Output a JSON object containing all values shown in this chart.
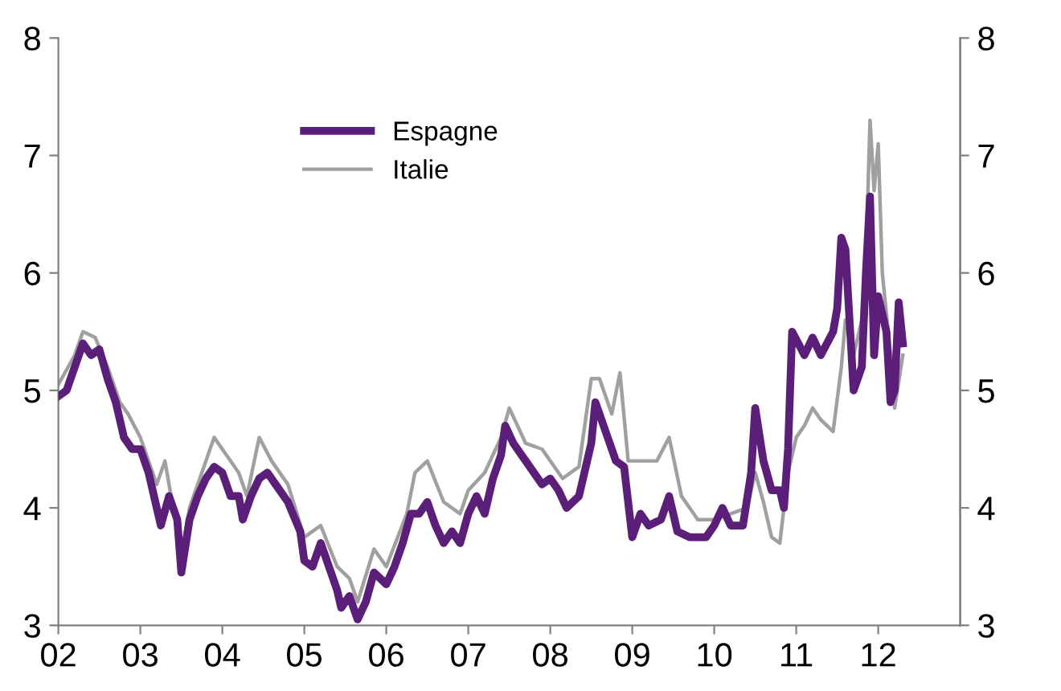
{
  "chart_data": {
    "type": "line",
    "xlim": [
      2002,
      2013
    ],
    "xticks": [
      {
        "value": 2002,
        "label": "02"
      },
      {
        "value": 2003,
        "label": "03"
      },
      {
        "value": 2004,
        "label": "04"
      },
      {
        "value": 2005,
        "label": "05"
      },
      {
        "value": 2006,
        "label": "06"
      },
      {
        "value": 2007,
        "label": "07"
      },
      {
        "value": 2008,
        "label": "08"
      },
      {
        "value": 2009,
        "label": "09"
      },
      {
        "value": 2010,
        "label": "10"
      },
      {
        "value": 2011,
        "label": "11"
      },
      {
        "value": 2012,
        "label": "12"
      }
    ],
    "ylim": [
      3,
      8
    ],
    "yticks": [
      3,
      4,
      5,
      6,
      7,
      8
    ],
    "y2lim": [
      3,
      8
    ],
    "y2ticks": [
      3,
      4,
      5,
      6,
      7,
      8
    ],
    "grid": false,
    "legend": "top",
    "marker": "none",
    "line_style": "solid",
    "series": [
      {
        "name": "Espagne",
        "color": "#5b1f7a",
        "x": [
          2002.0,
          2002.1,
          2002.2,
          2002.3,
          2002.4,
          2002.5,
          2002.6,
          2002.7,
          2002.8,
          2002.9,
          2003.0,
          2003.1,
          2003.2,
          2003.25,
          2003.35,
          2003.45,
          2003.5,
          2003.6,
          2003.7,
          2003.8,
          2003.9,
          2004.0,
          2004.1,
          2004.2,
          2004.25,
          2004.35,
          2004.45,
          2004.55,
          2004.65,
          2004.8,
          2004.95,
          2005.0,
          2005.1,
          2005.2,
          2005.3,
          2005.4,
          2005.45,
          2005.55,
          2005.65,
          2005.75,
          2005.85,
          2006.0,
          2006.1,
          2006.2,
          2006.3,
          2006.4,
          2006.5,
          2006.6,
          2006.7,
          2006.8,
          2006.9,
          2007.0,
          2007.1,
          2007.2,
          2007.3,
          2007.4,
          2007.45,
          2007.55,
          2007.7,
          2007.9,
          2008.0,
          2008.1,
          2008.2,
          2008.35,
          2008.5,
          2008.55,
          2008.65,
          2008.8,
          2008.9,
          2009.0,
          2009.1,
          2009.2,
          2009.35,
          2009.45,
          2009.55,
          2009.7,
          2009.9,
          2010.0,
          2010.1,
          2010.2,
          2010.35,
          2010.45,
          2010.5,
          2010.6,
          2010.7,
          2010.8,
          2010.85,
          2010.9,
          2010.95,
          2011.1,
          2011.2,
          2011.3,
          2011.45,
          2011.5,
          2011.55,
          2011.6,
          2011.7,
          2011.8,
          2011.85,
          2011.9,
          2011.95,
          2012.0,
          2012.1,
          2012.15,
          2012.2,
          2012.25,
          2012.3
        ],
        "values": [
          4.95,
          5.0,
          5.2,
          5.4,
          5.3,
          5.35,
          5.1,
          4.9,
          4.6,
          4.5,
          4.5,
          4.3,
          4.0,
          3.85,
          4.1,
          3.9,
          3.45,
          3.9,
          4.1,
          4.25,
          4.35,
          4.3,
          4.1,
          4.1,
          3.9,
          4.1,
          4.25,
          4.3,
          4.2,
          4.05,
          3.8,
          3.55,
          3.5,
          3.7,
          3.5,
          3.3,
          3.15,
          3.25,
          3.05,
          3.2,
          3.45,
          3.35,
          3.5,
          3.7,
          3.95,
          3.95,
          4.05,
          3.85,
          3.7,
          3.8,
          3.7,
          3.95,
          4.1,
          3.95,
          4.25,
          4.45,
          4.7,
          4.55,
          4.4,
          4.2,
          4.25,
          4.15,
          4.0,
          4.1,
          4.55,
          4.9,
          4.7,
          4.4,
          4.35,
          3.75,
          3.95,
          3.85,
          3.9,
          4.1,
          3.8,
          3.75,
          3.75,
          3.85,
          4.0,
          3.85,
          3.85,
          4.3,
          4.85,
          4.4,
          4.15,
          4.15,
          4.0,
          4.5,
          5.5,
          5.3,
          5.45,
          5.3,
          5.5,
          5.7,
          6.3,
          6.2,
          5.0,
          5.2,
          6.0,
          6.65,
          5.3,
          5.8,
          5.5,
          4.9,
          5.0,
          5.75,
          5.4
        ]
      },
      {
        "name": "Italie",
        "color": "#a0a0a0",
        "x": [
          2002.0,
          2002.2,
          2002.3,
          2002.45,
          2002.6,
          2002.75,
          2002.85,
          2003.0,
          2003.2,
          2003.3,
          2003.5,
          2003.6,
          2003.8,
          2003.9,
          2004.0,
          2004.2,
          2004.3,
          2004.45,
          2004.6,
          2004.8,
          2005.0,
          2005.2,
          2005.4,
          2005.55,
          2005.65,
          2005.85,
          2006.0,
          2006.25,
          2006.35,
          2006.5,
          2006.7,
          2006.9,
          2007.0,
          2007.2,
          2007.4,
          2007.5,
          2007.7,
          2007.9,
          2008.15,
          2008.35,
          2008.5,
          2008.6,
          2008.75,
          2008.85,
          2008.95,
          2009.1,
          2009.3,
          2009.45,
          2009.6,
          2009.8,
          2010.0,
          2010.2,
          2010.4,
          2010.5,
          2010.6,
          2010.7,
          2010.8,
          2010.9,
          2011.0,
          2011.1,
          2011.2,
          2011.3,
          2011.45,
          2011.55,
          2011.6,
          2011.7,
          2011.8,
          2011.85,
          2011.9,
          2011.95,
          2012.0,
          2012.05,
          2012.15,
          2012.2,
          2012.3
        ],
        "values": [
          5.05,
          5.3,
          5.5,
          5.45,
          5.2,
          4.9,
          4.8,
          4.6,
          4.2,
          4.4,
          3.6,
          4.0,
          4.4,
          4.6,
          4.5,
          4.3,
          4.1,
          4.6,
          4.4,
          4.2,
          3.75,
          3.85,
          3.5,
          3.4,
          3.2,
          3.65,
          3.5,
          3.95,
          4.3,
          4.4,
          4.05,
          3.95,
          4.15,
          4.3,
          4.6,
          4.85,
          4.55,
          4.5,
          4.25,
          4.35,
          5.1,
          5.1,
          4.8,
          5.15,
          4.4,
          4.4,
          4.4,
          4.6,
          4.1,
          3.9,
          3.9,
          3.95,
          4.0,
          4.3,
          4.05,
          3.75,
          3.7,
          4.3,
          4.6,
          4.7,
          4.85,
          4.75,
          4.65,
          5.2,
          5.6,
          5.3,
          5.6,
          6.1,
          7.3,
          6.7,
          7.1,
          6.0,
          5.3,
          4.85,
          5.3
        ]
      }
    ]
  }
}
